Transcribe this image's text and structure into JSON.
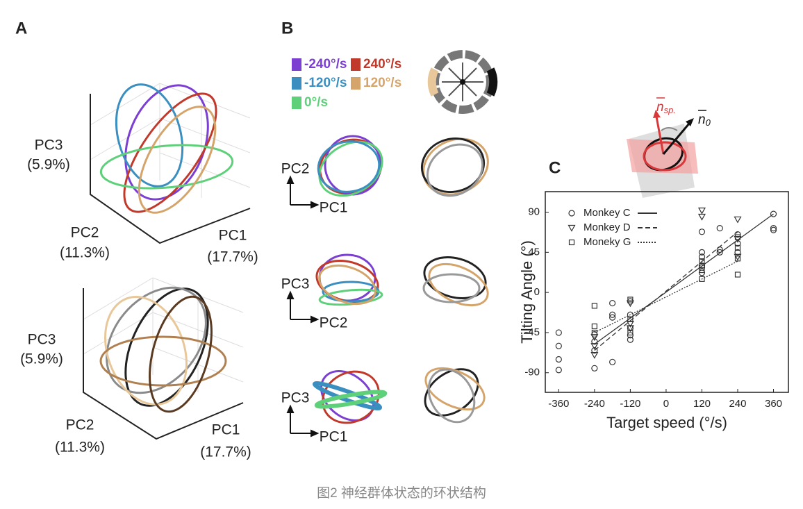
{
  "panel_labels": [
    "A",
    "B",
    "C"
  ],
  "panel_a": {
    "plots": [
      {
        "pc3": "PC3",
        "pc3_var": "(5.9%)",
        "pc2": "PC2",
        "pc2_var": "(11.3%)",
        "pc1": "PC1",
        "pc1_var": "(17.7%)"
      },
      {
        "pc3": "PC3",
        "pc3_var": "(5.9%)",
        "pc2": "PC2",
        "pc2_var": "(11.3%)",
        "pc1": "PC1",
        "pc1_var": "(17.7%)"
      }
    ]
  },
  "panel_b": {
    "legend": [
      {
        "label": "-240°/s",
        "color": "#7b3fd1"
      },
      {
        "label": "240°/s",
        "color": "#c0392b"
      },
      {
        "label": "-120°/s",
        "color": "#3a8fc0"
      },
      {
        "label": "120°/s",
        "color": "#d4a46a"
      },
      {
        "label": "0°/s",
        "color": "#5fd07a"
      }
    ],
    "axes": [
      {
        "y": "PC2",
        "x": "PC1"
      },
      {
        "y": "PC3",
        "x": "PC2"
      },
      {
        "y": "PC3",
        "x": "PC1"
      }
    ]
  },
  "diagram": {
    "vectors": [
      {
        "base": "n",
        "sub": "sp.",
        "color": "#d9383a"
      },
      {
        "base": "n",
        "sub": "0",
        "color": "#111111"
      }
    ]
  },
  "chart_data": {
    "type": "scatter",
    "x_label": "Target speed (°/s)",
    "y_label": "Tilting Angle (°)",
    "xlim": [
      -405,
      410
    ],
    "ylim": [
      -112,
      113
    ],
    "xticks": [
      -360,
      -240,
      -120,
      0,
      120,
      240,
      360
    ],
    "yticks": [
      90,
      45,
      0,
      -45,
      -90
    ],
    "legend": "upper left",
    "series": [
      {
        "name": "Monkey C",
        "marker": "circle",
        "line": "solid",
        "color": "#333333",
        "x": [
          -360,
          -360,
          -360,
          -360,
          -240,
          -240,
          -240,
          -240,
          -180,
          -180,
          -180,
          -180,
          -120,
          -120,
          -120,
          -120,
          -120,
          120,
          120,
          120,
          120,
          120,
          120,
          180,
          180,
          180,
          240,
          240,
          240,
          360,
          360,
          360
        ],
        "values": [
          -45,
          -60,
          -75,
          -87,
          -47,
          -55,
          -65,
          -85,
          -12,
          -25,
          -28,
          -78,
          -10,
          -25,
          -40,
          -48,
          -53,
          68,
          45,
          40,
          28,
          22,
          30,
          72,
          48,
          45,
          65,
          55,
          45,
          88,
          72,
          70
        ],
        "fit_x": [
          -240,
          360
        ],
        "fit_y": [
          -58,
          88
        ]
      },
      {
        "name": "Monkey D",
        "marker": "triangle",
        "line": "dashed",
        "color": "#333333",
        "x": [
          -240,
          -240,
          -240,
          -120,
          -120,
          -120,
          120,
          120,
          240,
          240,
          240
        ],
        "values": [
          -50,
          -60,
          -70,
          -12,
          -40,
          -35,
          92,
          85,
          82,
          60,
          40
        ],
        "fit_x": [
          -240,
          240
        ],
        "fit_y": [
          -65,
          68
        ]
      },
      {
        "name": "Moneky G",
        "marker": "square",
        "line": "dotted",
        "color": "#333333",
        "x": [
          -240,
          -240,
          -240,
          -120,
          -120,
          -120,
          120,
          120,
          120,
          240,
          240,
          240,
          240
        ],
        "values": [
          -15,
          -38,
          -45,
          -8,
          -30,
          -45,
          15,
          25,
          35,
          62,
          38,
          20,
          50
        ],
        "fit_x": [
          -240,
          240
        ],
        "fit_y": [
          -45,
          35
        ]
      }
    ]
  },
  "caption": "图2 神经群体状态的环状结构"
}
